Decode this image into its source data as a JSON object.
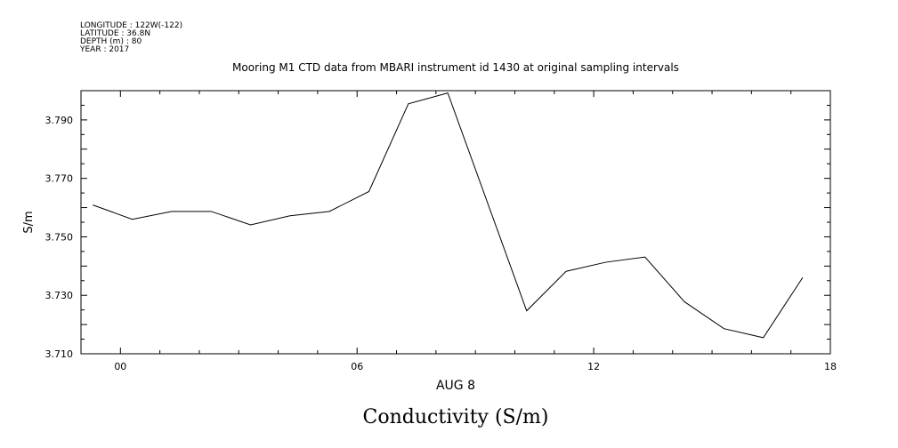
{
  "header": {
    "longitude": "LONGITUDE : 122W(-122)",
    "latitude": "LATITUDE : 36.8N",
    "depth": "DEPTH (m) : 80",
    "year": "YEAR : 2017"
  },
  "chart_data": {
    "type": "line",
    "title": "Mooring M1 CTD data from MBARI instrument id 1430 at original sampling intervals",
    "xlabel": "AUG  8",
    "ylabel": "S/m",
    "caption": "Conductivity (S/m)",
    "xlim": [
      -1,
      18
    ],
    "ylim": [
      3.71,
      3.8
    ],
    "x_ticks": [
      0,
      6,
      12,
      18
    ],
    "x_tick_labels": [
      "00",
      "06",
      "12",
      "18"
    ],
    "y_ticks": [
      3.71,
      3.73,
      3.75,
      3.77,
      3.79
    ],
    "y_tick_labels": [
      "3.710",
      "3.730",
      "3.750",
      "3.770",
      "3.790"
    ],
    "grid": false,
    "series": [
      {
        "name": "Conductivity",
        "color": "#000000",
        "x": [
          -0.7,
          0.3,
          1.3,
          2.3,
          3.3,
          4.3,
          5.3,
          6.3,
          7.3,
          8.3,
          10.3,
          11.3,
          12.3,
          13.3,
          14.3,
          15.3,
          16.3,
          17.3
        ],
        "y": [
          3.7609,
          3.756,
          3.7587,
          3.7587,
          3.7541,
          3.7572,
          3.7587,
          3.7655,
          3.7955,
          3.7992,
          3.7247,
          3.7382,
          3.7413,
          3.7431,
          3.7278,
          3.7186,
          3.7155,
          3.7361
        ]
      }
    ]
  }
}
